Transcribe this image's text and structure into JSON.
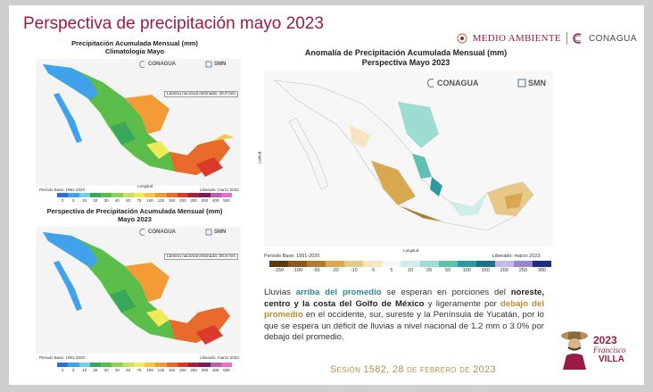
{
  "slide": {
    "title": "Perspectiva de precipitación mayo 2023",
    "logos": {
      "medio_ambiente": "MEDIO AMBIENTE",
      "conagua": "CONAGUA"
    }
  },
  "clim": {
    "title_line1": "Precipitación Acumulada Mensual (mm)",
    "title_line2": "Climatología Mayo",
    "badge": "Lámina nacional estimada: 40.0 mm",
    "period": "Periodo Base: 1991-2020",
    "released": "Liberado: marzo 2023",
    "xlabel": "Longitud",
    "ylabel": "Latitud"
  },
  "persp": {
    "title_line1": "Perspectiva de Precipitación Acumulada Mensual (mm)",
    "title_line2": "Mayo 2023",
    "badge": "Lámina nacional estimada: 38.8 mm",
    "period": "Periodo Base: 1991-2020",
    "released": "Liberado: marzo 2023"
  },
  "small_scale": {
    "ticks": [
      "0",
      "5",
      "10",
      "20",
      "30",
      "40",
      "50",
      "75",
      "100",
      "125",
      "150",
      "200",
      "250",
      "300",
      "400",
      "500"
    ],
    "colors": [
      "#2a6fd6",
      "#3fa2ea",
      "#6fd0e8",
      "#3aa85a",
      "#5cbe4a",
      "#90d15a",
      "#c8e06a",
      "#f3ea5a",
      "#f6c744",
      "#f39b34",
      "#ea6a2c",
      "#d93a2a",
      "#a8203a",
      "#7a1a5a",
      "#b55fb5",
      "#e46fd0"
    ]
  },
  "anom": {
    "title_line1": "Anomalía de Precipitación Acumulada Mensual (mm)",
    "title_line2": "Perspectiva Mayo 2023",
    "period": "Periodo Base: 1991-2020",
    "released": "Liberado: marzo 2023",
    "xlabel": "Longitud",
    "ylabel": "Latitud",
    "ticks": [
      "-150",
      "-100",
      "-50",
      "-20",
      "-10",
      "-5",
      "5",
      "10",
      "20",
      "50",
      "100",
      "150",
      "200",
      "250",
      "300"
    ],
    "colors": [
      "#5a3a10",
      "#8a5a20",
      "#b07a30",
      "#d8a850",
      "#e8c888",
      "#f5e6c0",
      "#f6f6f6",
      "#cfeeea",
      "#9ddcd2",
      "#5fc0b0",
      "#2e9aa0",
      "#1e6f8a",
      "#c7b8e6",
      "#9a86cf",
      "#1f2f80"
    ]
  },
  "brand": {
    "conagua": "CONAGUA",
    "smn": "SMN"
  },
  "description": {
    "t1": "Lluvias ",
    "h1": "arriba del promedio",
    "t2": " se esperan en porciones del ",
    "h2": "noreste, centro y la costa del Golfo de México",
    "t3": " y ligeramente por ",
    "h3": "debajo del promedio",
    "t4": " en el occidente, sur, sureste y la Península de Yucatán, por lo que se espera un déficit de lluvias a nivel nacional de 1.2 mm o 3.0% por debajo del promedio."
  },
  "session": "Sesión 1582, 28 de febrero de 2023",
  "francisco_villa": {
    "year": "2023",
    "name1": "Francisco",
    "name2": "VILLA"
  }
}
